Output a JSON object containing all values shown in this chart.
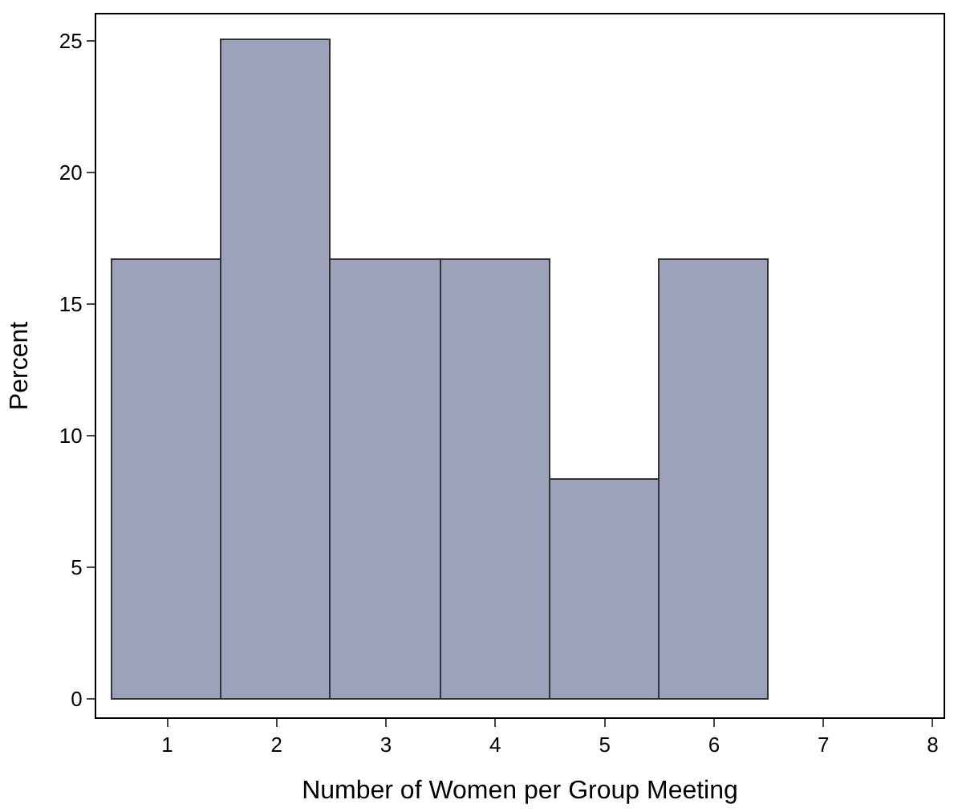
{
  "chart_data": {
    "type": "histogram",
    "xlabel": "Number of Women per Group Meeting",
    "ylabel": "Percent",
    "bins": [
      0.5,
      1.5,
      2.5,
      3.5,
      4.5,
      5.5,
      6.5
    ],
    "values": [
      16.7,
      25,
      16.7,
      16.7,
      8.3,
      16.7
    ],
    "color": "#9ca2ba",
    "xlim": [
      0.35,
      8.1
    ],
    "xticks": [
      1,
      2,
      3,
      4,
      5,
      6,
      7,
      8
    ],
    "ylim": [
      -0.7,
      26
    ],
    "yticks": [
      0,
      5,
      10,
      15,
      20,
      25
    ]
  }
}
